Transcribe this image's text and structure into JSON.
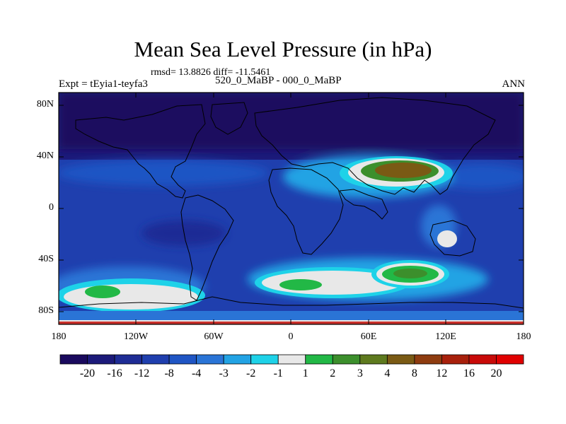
{
  "title": "Mean Sea Level Pressure (in hPa)",
  "stats": "rmsd= 13.8826 diff= -11.5461",
  "experiment": "Expt = tEyia1-teyfa3",
  "subtitle": "520_0_MaBP - 000_0_MaBP",
  "season": "ANN",
  "lat_labels": [
    "80N",
    "40N",
    "0",
    "40S",
    "80S"
  ],
  "lon_labels": [
    "180",
    "120W",
    "60W",
    "0",
    "60E",
    "120E",
    "180"
  ],
  "colorbar": {
    "labels": [
      "-20",
      "-16",
      "-12",
      "-8",
      "-4",
      "-3",
      "-2",
      "-1",
      "1",
      "2",
      "3",
      "4",
      "8",
      "12",
      "16",
      "20"
    ],
    "colors": [
      "#1a0a5e",
      "#1c1a7a",
      "#1e2c95",
      "#1f3fae",
      "#1f55c4",
      "#2a74d6",
      "#22a3e4",
      "#1ed2e8",
      "#e8e8e8",
      "#22b846",
      "#3c8f2c",
      "#5e7a1e",
      "#7a5a14",
      "#8e3c10",
      "#a8200c",
      "#c80a08",
      "#e00000"
    ]
  },
  "chart_data": {
    "type": "heatmap",
    "title": "Mean Sea Level Pressure (in hPa)",
    "units": "hPa",
    "x_range": [
      -180,
      180
    ],
    "y_range": [
      -90,
      90
    ],
    "contour_levels": [
      -20,
      -16,
      -12,
      -8,
      -4,
      -3,
      -2,
      -1,
      1,
      2,
      3,
      4,
      8,
      12,
      16,
      20
    ],
    "rmsd": 13.8826,
    "diff": -11.5461
  }
}
